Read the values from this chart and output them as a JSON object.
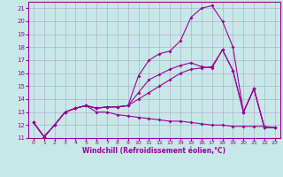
{
  "xlabel": "Windchill (Refroidissement éolien,°C)",
  "xlim": [
    -0.5,
    23.5
  ],
  "ylim": [
    11,
    21.5
  ],
  "yticks": [
    11,
    12,
    13,
    14,
    15,
    16,
    17,
    18,
    19,
    20,
    21
  ],
  "xticks": [
    0,
    1,
    2,
    3,
    4,
    5,
    6,
    7,
    8,
    9,
    10,
    11,
    12,
    13,
    14,
    15,
    16,
    17,
    18,
    19,
    20,
    21,
    22,
    23
  ],
  "bg_color": "#c8e8e8",
  "grid_color": "#b0b0cc",
  "line_color": "#990099",
  "line1_x": [
    0,
    1,
    2,
    3,
    4,
    5,
    6,
    7,
    8,
    9,
    10,
    11,
    12,
    13,
    14,
    15,
    16,
    17,
    18,
    19,
    20,
    21,
    22,
    23
  ],
  "line1_y": [
    12.2,
    11.1,
    12.0,
    13.0,
    13.3,
    13.5,
    13.0,
    13.0,
    12.8,
    12.7,
    12.6,
    12.5,
    12.4,
    12.3,
    12.3,
    12.2,
    12.1,
    12.0,
    12.0,
    11.9,
    11.9,
    11.9,
    11.9,
    11.8
  ],
  "line2_x": [
    0,
    1,
    2,
    3,
    4,
    5,
    6,
    7,
    8,
    9,
    10,
    11,
    12,
    13,
    14,
    15,
    16,
    17,
    18,
    19,
    20,
    21,
    22,
    23
  ],
  "line2_y": [
    12.2,
    11.1,
    12.0,
    13.0,
    13.3,
    13.5,
    13.3,
    13.4,
    13.4,
    13.5,
    14.0,
    14.5,
    15.0,
    15.5,
    16.0,
    16.3,
    16.4,
    16.5,
    17.8,
    16.2,
    13.0,
    14.8,
    11.8,
    11.8
  ],
  "line3_x": [
    0,
    1,
    2,
    3,
    4,
    5,
    6,
    7,
    8,
    9,
    10,
    11,
    12,
    13,
    14,
    15,
    16,
    17,
    18,
    19,
    20,
    21,
    22,
    23
  ],
  "line3_y": [
    12.2,
    11.1,
    12.0,
    13.0,
    13.3,
    13.5,
    13.3,
    13.4,
    13.4,
    13.5,
    14.5,
    15.5,
    15.9,
    16.3,
    16.6,
    16.8,
    16.5,
    16.4,
    17.8,
    16.2,
    13.0,
    14.8,
    11.8,
    11.8
  ],
  "line4_x": [
    0,
    1,
    2,
    3,
    4,
    5,
    6,
    7,
    8,
    9,
    10,
    11,
    12,
    13,
    14,
    15,
    16,
    17,
    18,
    19,
    20,
    21,
    22,
    23
  ],
  "line4_y": [
    12.2,
    11.1,
    12.0,
    13.0,
    13.3,
    13.5,
    13.3,
    13.4,
    13.4,
    13.5,
    15.8,
    17.0,
    17.5,
    17.7,
    18.5,
    20.3,
    21.0,
    21.2,
    20.0,
    18.0,
    13.0,
    14.8,
    11.8,
    11.8
  ]
}
